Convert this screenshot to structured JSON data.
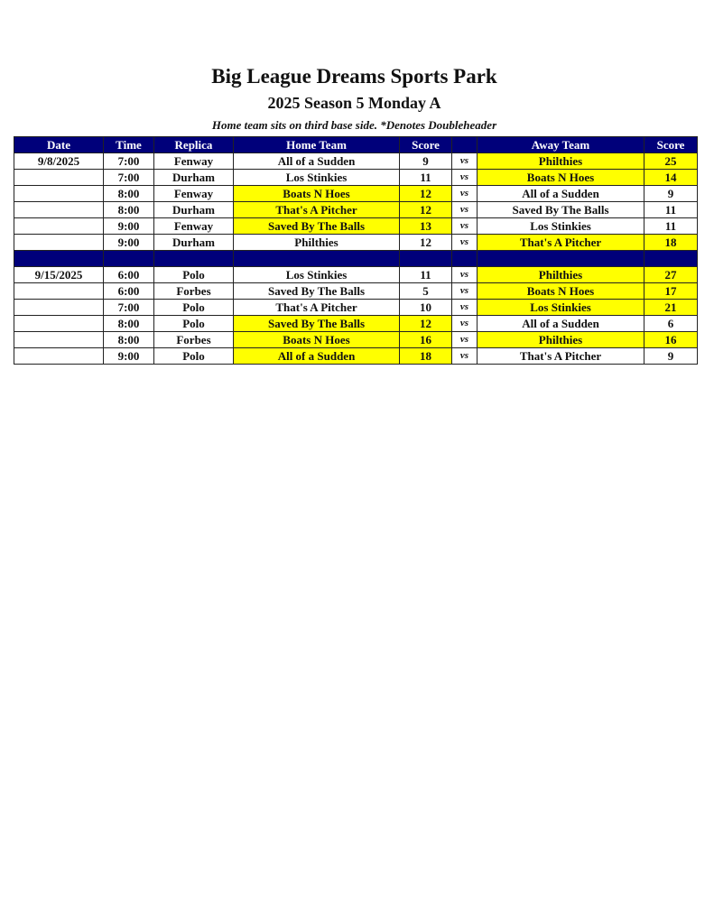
{
  "title": "Big League Dreams Sports Park",
  "subtitle": "2025 Season 5 Monday A",
  "note": "Home team sits on third base side.  *Denotes Doubleheader",
  "headers": [
    "Date",
    "Time",
    "Replica",
    "Home Team",
    "Score",
    "",
    "Away Team",
    "Score"
  ],
  "highlight_color": "#ffff00",
  "header_color": "#00007a",
  "weeks": [
    {
      "games": [
        {
          "date": "9/8/2025",
          "time": "7:00",
          "replica": "Fenway",
          "home": "All of a Sudden",
          "home_score": "9",
          "vs": "vs",
          "away": "Philthies",
          "away_score": "25",
          "home_hl": false,
          "away_hl": true
        },
        {
          "date": "",
          "time": "7:00",
          "replica": "Durham",
          "home": "Los Stinkies",
          "home_score": "11",
          "vs": "vs",
          "away": "Boats N Hoes",
          "away_score": "14",
          "home_hl": false,
          "away_hl": true
        },
        {
          "date": "",
          "time": "8:00",
          "replica": "Fenway",
          "home": "Boats N Hoes",
          "home_score": "12",
          "vs": "vs",
          "away": "All of a Sudden",
          "away_score": "9",
          "home_hl": true,
          "away_hl": false
        },
        {
          "date": "",
          "time": "8:00",
          "replica": "Durham",
          "home": "That's A Pitcher",
          "home_score": "12",
          "vs": "vs",
          "away": "Saved By The Balls",
          "away_score": "11",
          "home_hl": true,
          "away_hl": false
        },
        {
          "date": "",
          "time": "9:00",
          "replica": "Fenway",
          "home": "Saved By The Balls",
          "home_score": "13",
          "vs": "vs",
          "away": "Los Stinkies",
          "away_score": "11",
          "home_hl": true,
          "away_hl": false
        },
        {
          "date": "",
          "time": "9:00",
          "replica": "Durham",
          "home": "Philthies",
          "home_score": "12",
          "vs": "vs",
          "away": "That's A Pitcher",
          "away_score": "18",
          "home_hl": false,
          "away_hl": true
        }
      ]
    },
    {
      "games": [
        {
          "date": "9/15/2025",
          "time": "6:00",
          "replica": "Polo",
          "home": "Los Stinkies",
          "home_score": "11",
          "vs": "vs",
          "away": "Philthies",
          "away_score": "27",
          "home_hl": false,
          "away_hl": true
        },
        {
          "date": "",
          "time": "6:00",
          "replica": "Forbes",
          "home": "Saved By The Balls",
          "home_score": "5",
          "vs": "vs",
          "away": "Boats N Hoes",
          "away_score": "17",
          "home_hl": false,
          "away_hl": true
        },
        {
          "date": "",
          "time": "7:00",
          "replica": "Polo",
          "home": "That's A Pitcher",
          "home_score": "10",
          "vs": "vs",
          "away": "Los Stinkies",
          "away_score": "21",
          "home_hl": false,
          "away_hl": true
        },
        {
          "date": "",
          "time": "8:00",
          "replica": "Polo",
          "home": "Saved By The Balls",
          "home_score": "12",
          "vs": "vs",
          "away": "All of a Sudden",
          "away_score": "6",
          "home_hl": true,
          "away_hl": false
        },
        {
          "date": "",
          "time": "8:00",
          "replica": "Forbes",
          "home": "Boats N Hoes",
          "home_score": "16",
          "vs": "vs",
          "away": "Philthies",
          "away_score": "16",
          "home_hl": true,
          "away_hl": true
        },
        {
          "date": "",
          "time": "9:00",
          "replica": "Polo",
          "home": "All of a Sudden",
          "home_score": "18",
          "vs": "vs",
          "away": "That's A Pitcher",
          "away_score": "9",
          "home_hl": true,
          "away_hl": false
        }
      ]
    }
  ]
}
